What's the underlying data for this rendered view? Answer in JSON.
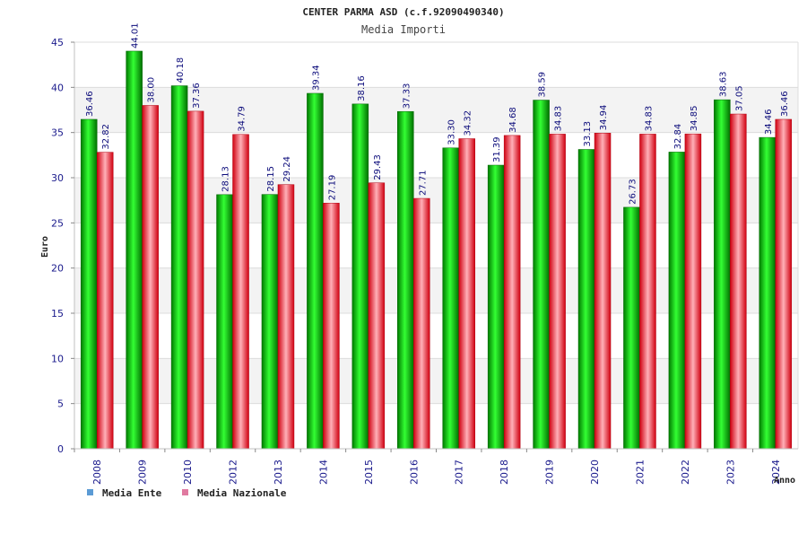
{
  "chart_data": {
    "type": "bar",
    "title": "CENTER PARMA ASD (c.f.92090490340)",
    "subtitle": "Media Importi",
    "xlabel": "Anno",
    "ylabel": "Euro",
    "ylim": [
      0,
      45
    ],
    "yticks": [
      0,
      5,
      10,
      15,
      20,
      25,
      30,
      35,
      40,
      45
    ],
    "categories": [
      "2008",
      "2009",
      "2010",
      "2012",
      "2013",
      "2014",
      "2015",
      "2016",
      "2017",
      "2018",
      "2019",
      "2020",
      "2021",
      "2022",
      "2023",
      "2024"
    ],
    "series": [
      {
        "name": "Media Ente",
        "color": "#00c000",
        "values": [
          36.46,
          44.01,
          40.18,
          28.13,
          28.15,
          39.34,
          38.16,
          37.33,
          33.3,
          31.39,
          38.59,
          33.13,
          26.73,
          32.84,
          38.63,
          34.46
        ],
        "labels": [
          "36.46",
          "44.01",
          "40.18",
          "28.13",
          "28.15",
          "39.34",
          "38.16",
          "37.33",
          "33.30",
          "31.39",
          "38.59",
          "33.13",
          "26.73",
          "32.84",
          "38.63",
          "34.46"
        ]
      },
      {
        "name": "Media Nazionale",
        "color": "#f03040",
        "values": [
          32.82,
          38.0,
          37.36,
          34.79,
          29.24,
          27.19,
          29.43,
          27.71,
          34.32,
          34.68,
          34.83,
          34.94,
          34.83,
          34.85,
          37.05,
          36.46
        ],
        "labels": [
          "32.82",
          "38.00",
          "37.36",
          "34.79",
          "29.24",
          "27.19",
          "29.43",
          "27.71",
          "34.32",
          "34.68",
          "34.83",
          "34.94",
          "34.83",
          "34.85",
          "37.05",
          "36.46"
        ]
      }
    ],
    "grid": true,
    "legend_position": "bottom-left",
    "legend_colors": [
      "#5b9bd5",
      "#e07aa0"
    ]
  }
}
